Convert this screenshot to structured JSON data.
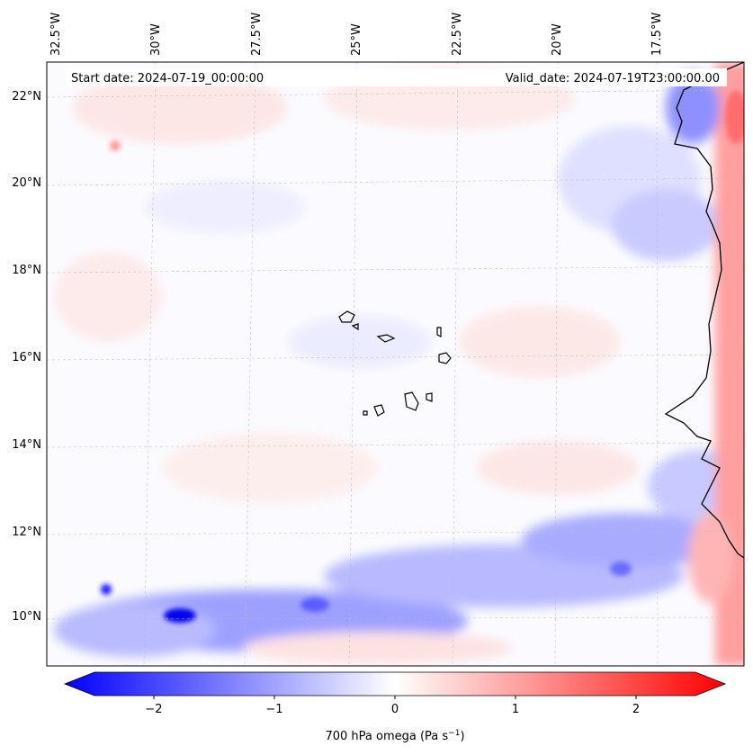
{
  "header": {
    "start_date": "Start date: 2024-07-19_00:00:00",
    "valid_date": "Valid_date: 2024-07-19T23:00:00.00"
  },
  "axes": {
    "lon_labels": [
      "32.5°W",
      "30°W",
      "27.5°W",
      "25°W",
      "22.5°W",
      "20°W",
      "17.5°W"
    ],
    "lat_labels": [
      "22°N",
      "20°N",
      "18°N",
      "16°N",
      "14°N",
      "12°N",
      "10°N"
    ]
  },
  "colorbar": {
    "ticks": [
      "−2",
      "−1",
      "0",
      "1",
      "2"
    ],
    "label": "700 hPa omega (Pa s",
    "label_exp": "−1",
    "label_close": ")",
    "range": [
      -2.6,
      2.6
    ],
    "colors": {
      "negative": "#0000ff",
      "zero": "#ffffff",
      "positive": "#ff0000"
    }
  },
  "map": {
    "region": "Cabo Verde and West African coast",
    "features": [
      "cabo-verde-islands",
      "west-africa-coastline"
    ]
  }
}
